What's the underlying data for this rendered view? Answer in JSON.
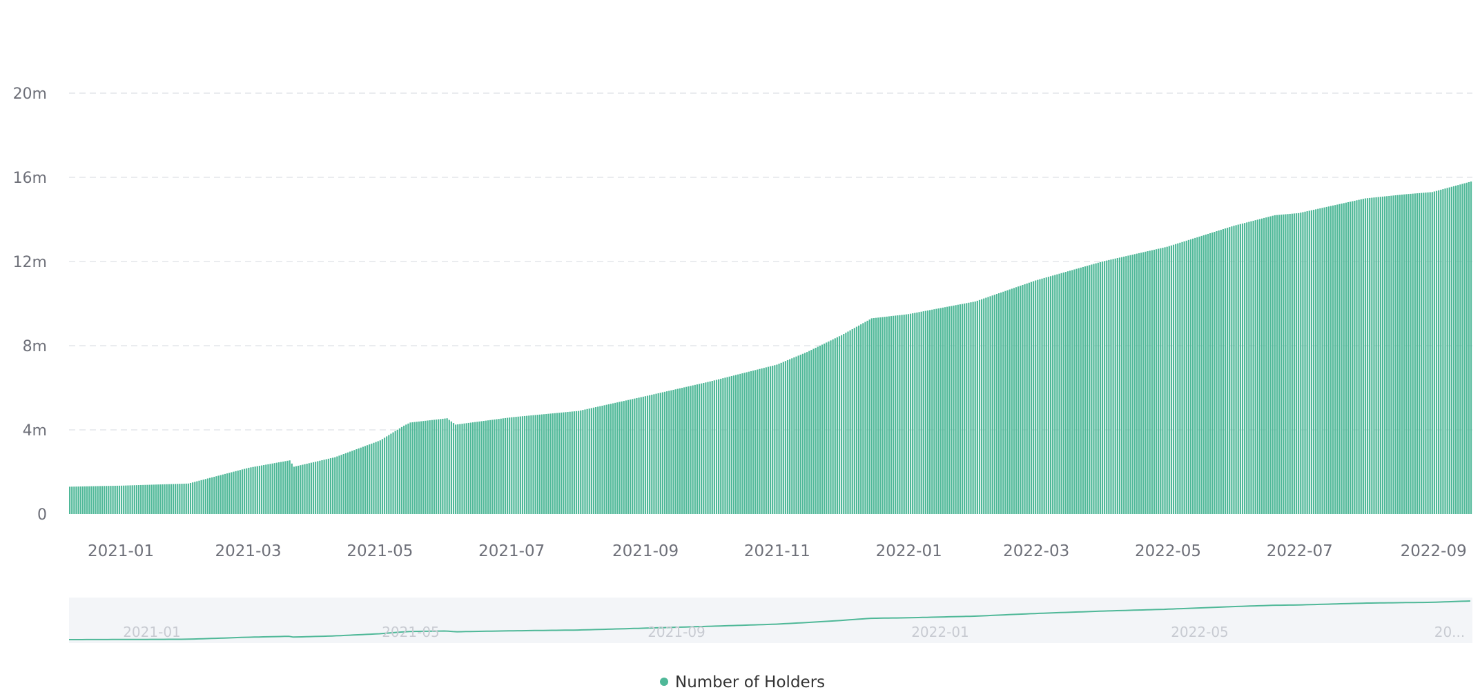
{
  "colors": {
    "series": "#4fb898",
    "series_line": "#4fb898",
    "grid": "#e3e5ea",
    "axis_text": "#6e7079",
    "zoom_bg": "#f3f5f8",
    "zoom_text": "#c8cbd2"
  },
  "legend": {
    "items": [
      {
        "label": "Number of Holders",
        "color": "#4fb898"
      }
    ],
    "placement": "bottom-center"
  },
  "chart_data": {
    "type": "bar",
    "title": "",
    "xlabel": "",
    "ylabel": "",
    "ylim": [
      0,
      20000000
    ],
    "y_ticks": [
      {
        "value": 0,
        "label": "0"
      },
      {
        "value": 4000000,
        "label": "4m"
      },
      {
        "value": 8000000,
        "label": "8m"
      },
      {
        "value": 12000000,
        "label": "12m"
      },
      {
        "value": 16000000,
        "label": "16m"
      },
      {
        "value": 20000000,
        "label": "20m"
      }
    ],
    "grid": true,
    "x_range": [
      "2020-12-08",
      "2022-09-19"
    ],
    "x_ticks": [
      "2021-01",
      "2021-03",
      "2021-05",
      "2021-07",
      "2021-09",
      "2021-11",
      "2022-01",
      "2022-03",
      "2022-05",
      "2022-07",
      "2022-09"
    ],
    "zoom_ticks": [
      "2021-01",
      "2021-05",
      "2021-09",
      "2022-01",
      "2022-05",
      "20..."
    ],
    "series": [
      {
        "name": "Number of Holders",
        "x": [
          "2020-12-08",
          "2021-01-01",
          "2021-02-01",
          "2021-03-01",
          "2021-03-20",
          "2021-03-22",
          "2021-04-10",
          "2021-05-01",
          "2021-05-12",
          "2021-05-15",
          "2021-06-01",
          "2021-06-05",
          "2021-07-01",
          "2021-08-01",
          "2021-09-01",
          "2021-10-01",
          "2021-11-01",
          "2021-11-15",
          "2021-12-01",
          "2021-12-15",
          "2022-01-01",
          "2022-02-01",
          "2022-03-01",
          "2022-04-01",
          "2022-05-01",
          "2022-06-01",
          "2022-06-20",
          "2022-07-01",
          "2022-08-01",
          "2022-08-20",
          "2022-09-01",
          "2022-09-19"
        ],
        "values": [
          1300000,
          1350000,
          1450000,
          2200000,
          2550000,
          2250000,
          2700000,
          3500000,
          4200000,
          4350000,
          4550000,
          4250000,
          4600000,
          4900000,
          5600000,
          6300000,
          7100000,
          7700000,
          8500000,
          9300000,
          9500000,
          10100000,
          11100000,
          12000000,
          12700000,
          13700000,
          14200000,
          14300000,
          15000000,
          15200000,
          15300000,
          15800000
        ]
      }
    ]
  }
}
